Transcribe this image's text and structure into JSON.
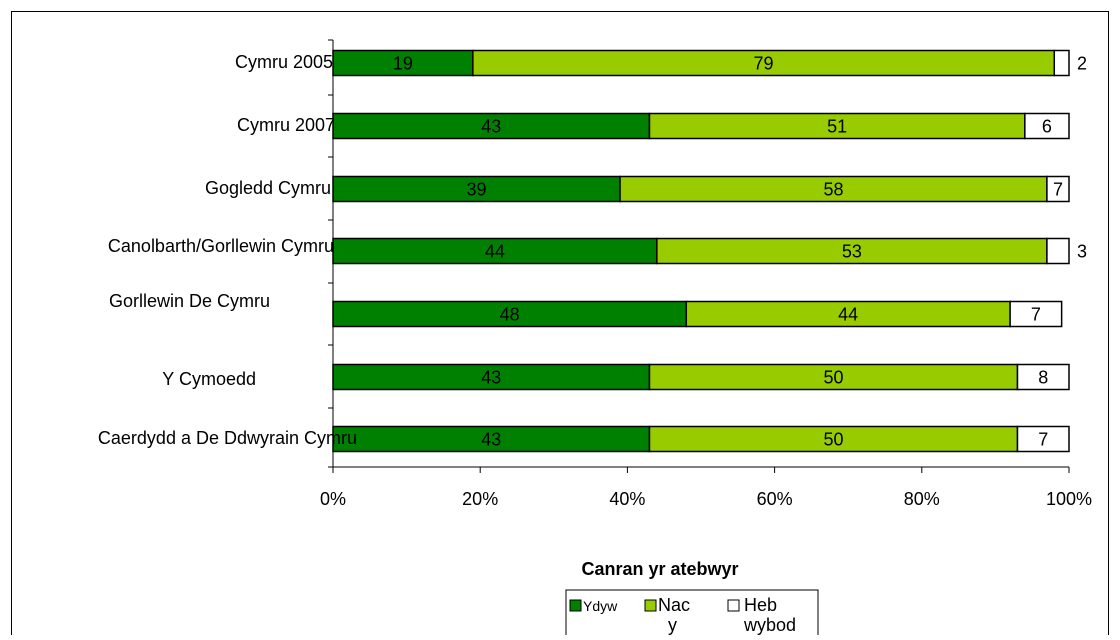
{
  "chart_data": {
    "type": "bar",
    "orientation": "horizontal",
    "stacked": "percent",
    "categories": [
      "Cymru 2005",
      "Cymru 2007",
      "Gogledd Cymru",
      "Canolbarth/Gorllewin Cymru",
      "Gorllewin De Cymru",
      "Y Cymoedd",
      "Caerdydd a De Ddwyrain Cymru"
    ],
    "series": [
      {
        "name": "Ydyw",
        "color": "#008000",
        "values": [
          19,
          43,
          39,
          44,
          48,
          43,
          43
        ]
      },
      {
        "name": "Nac ydyw",
        "color": "#99CC00",
        "values": [
          79,
          51,
          58,
          53,
          44,
          50,
          50
        ]
      },
      {
        "name": "Heb wybod",
        "color": "#FFFFFF",
        "values": [
          2,
          6,
          7,
          3,
          7,
          8,
          7
        ]
      }
    ],
    "xlabel": "Canran yr atebwyr",
    "ylabel": "",
    "xlim": [
      0,
      100
    ],
    "xticks": [
      "0%",
      "20%",
      "40%",
      "60%",
      "80%",
      "100%"
    ],
    "grid": false,
    "legend_position": "bottom",
    "legend_labels": [
      "Ydyw",
      "Nac\ny",
      "Heb\nwybod"
    ]
  }
}
